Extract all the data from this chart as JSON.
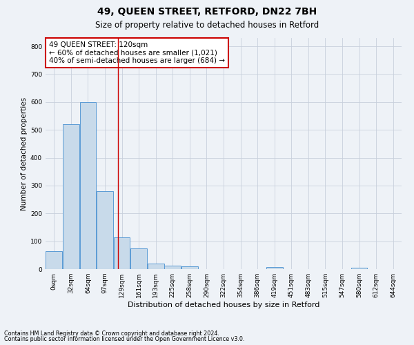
{
  "title1": "49, QUEEN STREET, RETFORD, DN22 7BH",
  "title2": "Size of property relative to detached houses in Retford",
  "xlabel": "Distribution of detached houses by size in Retford",
  "ylabel": "Number of detached properties",
  "bar_labels": [
    "0sqm",
    "32sqm",
    "64sqm",
    "97sqm",
    "129sqm",
    "161sqm",
    "193sqm",
    "225sqm",
    "258sqm",
    "290sqm",
    "322sqm",
    "354sqm",
    "386sqm",
    "419sqm",
    "451sqm",
    "483sqm",
    "515sqm",
    "547sqm",
    "580sqm",
    "612sqm",
    "644sqm"
  ],
  "bar_values": [
    65,
    520,
    600,
    280,
    115,
    75,
    20,
    12,
    10,
    0,
    0,
    0,
    0,
    8,
    0,
    0,
    0,
    0,
    5,
    0,
    0
  ],
  "bar_color": "#c8daea",
  "bar_edge_color": "#5b9bd5",
  "ylim": [
    0,
    830
  ],
  "yticks": [
    0,
    100,
    200,
    300,
    400,
    500,
    600,
    700,
    800
  ],
  "vline_x": 3.78,
  "vline_color": "#cc0000",
  "annotation_text": "49 QUEEN STREET: 120sqm\n← 60% of detached houses are smaller (1,021)\n40% of semi-detached houses are larger (684) →",
  "annotation_box_color": "white",
  "annotation_box_edge_color": "#cc0000",
  "footer1": "Contains HM Land Registry data © Crown copyright and database right 2024.",
  "footer2": "Contains public sector information licensed under the Open Government Licence v3.0.",
  "background_color": "#eef2f7",
  "grid_color": "#c8d0dc",
  "title1_fontsize": 10,
  "title2_fontsize": 8.5,
  "annotation_fontsize": 7.5,
  "xlabel_fontsize": 8,
  "ylabel_fontsize": 7.5,
  "tick_fontsize": 6.5,
  "footer_fontsize": 5.8
}
